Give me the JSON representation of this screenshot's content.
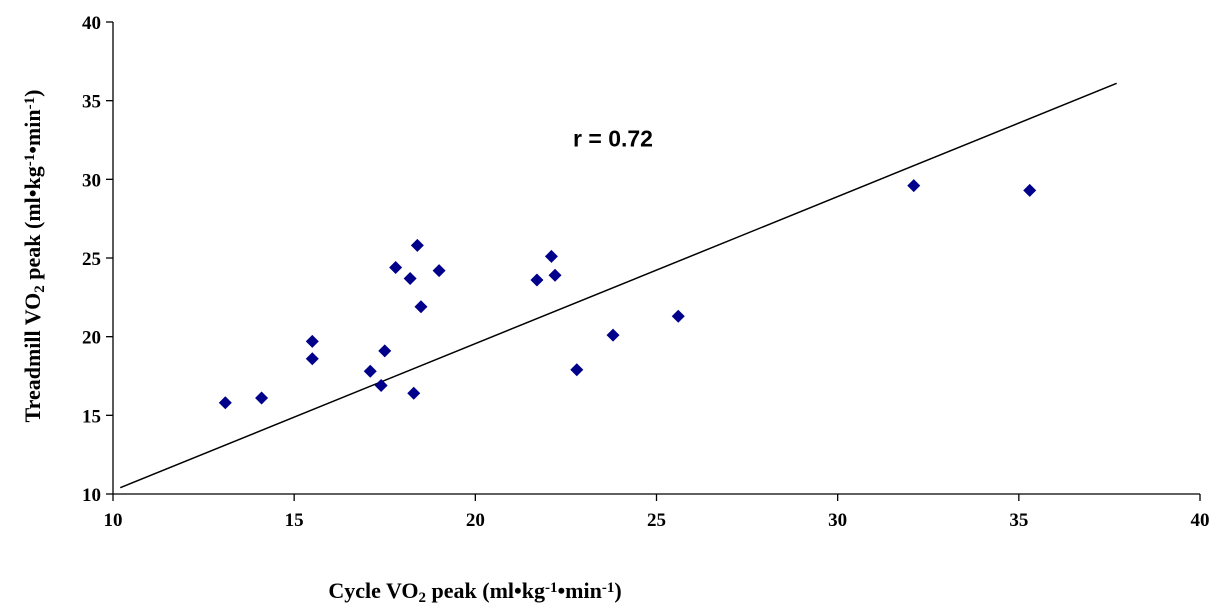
{
  "chart_data": {
    "type": "scatter",
    "title": "",
    "xlabel": {
      "parts": [
        "Cycle VO",
        "2",
        " peak (ml•kg",
        "-1",
        "•min",
        "-1",
        ")"
      ]
    },
    "ylabel": {
      "parts": [
        "Treadmill VO",
        "2",
        " peak (ml•kg",
        "-1",
        "•min",
        "-1",
        ")"
      ]
    },
    "xlim": [
      10,
      40
    ],
    "ylim": [
      10,
      40
    ],
    "xticks": [
      "10",
      "15",
      "20",
      "25",
      "30",
      "35",
      "40"
    ],
    "yticks": [
      "10",
      "15",
      "20",
      "25",
      "30",
      "35",
      "40"
    ],
    "grid": false,
    "legend": "none",
    "marker_color": "#00008B",
    "marker": "diamond",
    "points": [
      {
        "x": 13.1,
        "y": 15.8
      },
      {
        "x": 14.1,
        "y": 16.1
      },
      {
        "x": 15.5,
        "y": 19.7
      },
      {
        "x": 15.5,
        "y": 18.6
      },
      {
        "x": 17.1,
        "y": 17.8
      },
      {
        "x": 17.4,
        "y": 16.9
      },
      {
        "x": 17.5,
        "y": 19.1
      },
      {
        "x": 17.8,
        "y": 24.4
      },
      {
        "x": 18.2,
        "y": 23.7
      },
      {
        "x": 18.3,
        "y": 16.4
      },
      {
        "x": 18.4,
        "y": 25.8
      },
      {
        "x": 18.5,
        "y": 21.9
      },
      {
        "x": 19.0,
        "y": 24.2
      },
      {
        "x": 21.7,
        "y": 23.6
      },
      {
        "x": 22.1,
        "y": 25.1
      },
      {
        "x": 22.2,
        "y": 23.9
      },
      {
        "x": 22.8,
        "y": 17.9
      },
      {
        "x": 23.8,
        "y": 20.1
      },
      {
        "x": 25.6,
        "y": 21.3
      },
      {
        "x": 32.1,
        "y": 29.6
      },
      {
        "x": 35.3,
        "y": 29.3
      }
    ],
    "trendline": {
      "x": [
        10.2,
        37.7
      ],
      "y": [
        10.4,
        36.1
      ]
    },
    "annotations": [
      {
        "text": "r = 0.72",
        "x": 23.8,
        "y": 32.6
      }
    ]
  }
}
